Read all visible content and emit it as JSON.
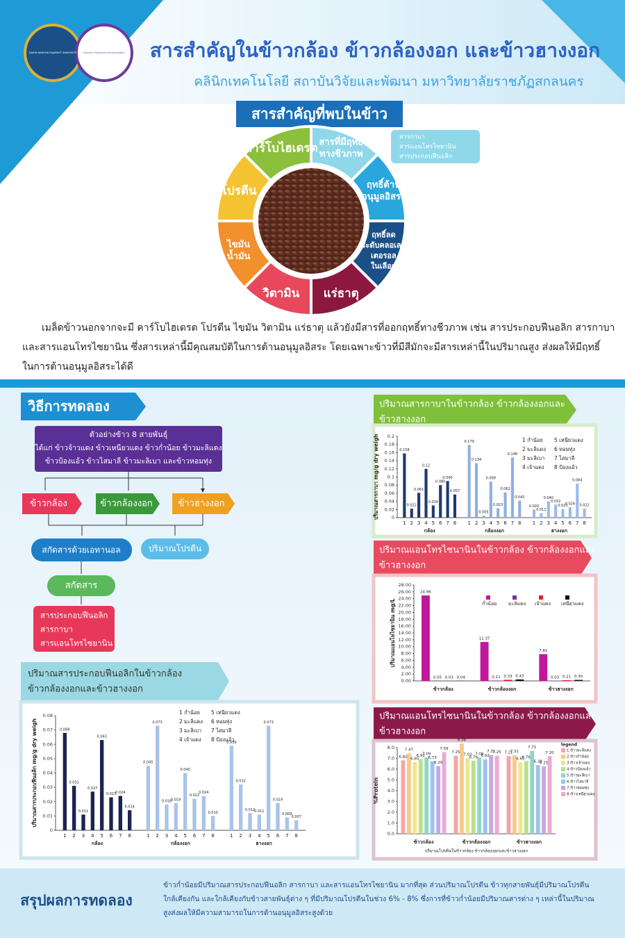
{
  "header": {
    "title": "สารสำคัญในข้าวกล้อง ข้าวกล้องงอก และข้าวฮางงอก",
    "subtitle": "คลินิกเทคโนโลยี สถาบันวิจัยและพัฒนา มหาวิทยาลัยราชภัฏสกลนคร",
    "logos": [
      "SAKON NAKHON RAJABHAT UNIVERSITY",
      "Science, Research and Innovation"
    ]
  },
  "compounds": {
    "title": "สารสำคัญที่พบในข้าว",
    "segments": [
      {
        "label": [
          "สารที่มีฤทธิ์",
          "ทางชีวภาพ"
        ],
        "color": "#8fd8ea"
      },
      {
        "label": [
          "ฤทธิ์ต้าน",
          "อนุมูลอิสระ"
        ],
        "color": "#2aa6de"
      },
      {
        "label": [
          "ฤทธิ์ลด",
          "ระดับคลอเลส",
          "เตอรอล",
          "ในเลือด"
        ],
        "color": "#1b4f88"
      },
      {
        "label": [
          "แร่ธาตุ"
        ],
        "color": "#8c1840"
      },
      {
        "label": [
          "วิตามิน"
        ],
        "color": "#e8485c"
      },
      {
        "label": [
          "ไขมัน",
          "น้ำมัน"
        ],
        "color": "#f2902c"
      },
      {
        "label": [
          "โปรตีน"
        ],
        "color": "#f5c232"
      },
      {
        "label": [
          "คาร์โบไฮเดรต"
        ],
        "color": "#8cbf3c"
      }
    ],
    "callout": [
      "สารกาบา",
      "สารแอนโทรไซยานิน",
      "สารประกอบฟีนอลิก"
    ]
  },
  "intro": [
    "เมล็ดข้าวนอกจากจะมี คาร์โบไฮเดรต โปรตีน ไขมัน วิตามิน  แร่ธาตุ แล้วยังมีสารที่ออกฤทธิ์ทางชีวภาพ เช่น สารประกอบฟีนอลิก สารกาบา",
    "และสารแอนโทรไซยานิน ซึ่งสารเหล่านี้มีคุณสมบัติในการต้านอนุมูลอิสระ โดยเฉพาะข้าวที่มีสีมักจะมีสารเหล่านี้ในปริมาณสูง ส่งผลให้มีฤทธิ์",
    "ในการต้านอนุมูลอิสระได้ดี"
  ],
  "method": {
    "title": "วิธีการทดลอง",
    "sample": [
      "ตัวอย่างข้าว 8 สายพันธุ์",
      "ได้แก่  ข้าวจ้าวแดง  ข้าวเหนียวแดง  ข้าวก่ำน้อย  ข้าวมะลิแดง",
      "ข้าวป้องแอ้ว  ข้าวไสมาลี  ข้าวมะลิเบา  และข้าวหอมทุ่ง"
    ],
    "types": [
      "ข้าวกล้อง",
      "ข้าวกล้องงอก",
      "ข้าวฮางงอก"
    ],
    "extract": "สกัดสารด้วยเอทานอล",
    "protein": "ปริมาณโปรตีน",
    "extract2": "สกัดสาร",
    "results": [
      "สารประกอบฟีนอลิก",
      "สารกาบา",
      "สารแอนโทรไซยานิน"
    ]
  },
  "chart_data": [
    {
      "type": "bar",
      "title": [
        "ปริมาณสารกาบาในข้าวกล้อง  ข้าวกล้องงอกและ",
        "ข้าวฮางงอก"
      ],
      "y_label": "ปริมาณสารกาบา mg/g dry weigh",
      "categories": [
        "1",
        "2",
        "3",
        "4",
        "5",
        "6",
        "7",
        "8"
      ],
      "series": [
        {
          "name": "กล้อง",
          "color": "#1f3a70",
          "values": [
            0.158,
            0.022,
            0.061,
            0.12,
            0.03,
            0.08,
            0.09,
            0.057
          ],
          "value_labels": [
            "0.158",
            "0.022",
            "0.061",
            "0.12",
            "0.030",
            "0.080",
            "0.090",
            "0.057"
          ]
        },
        {
          "name": "กล้องงอก",
          "color": "#8fb0e2",
          "values": [
            0.179,
            0.134,
            0.005,
            0.089,
            0.023,
            0.062,
            0.148,
            0.042
          ],
          "value_labels": [
            "0.179",
            "0.134",
            "0.005",
            "0.089",
            "0.023",
            "0.062",
            "0.148",
            "0.042"
          ]
        },
        {
          "name": "ฮางงอก",
          "color": "#9cbbe8",
          "values": [
            0.02,
            0.011,
            0.04,
            0.032,
            0.021,
            0.026,
            0.084,
            0.022
          ],
          "value_labels": [
            "0.020",
            "0.011",
            "0.040",
            "0.032",
            "0.021",
            "0.026",
            "0.084",
            "0.022"
          ]
        }
      ],
      "ylim": [
        0,
        0.2
      ],
      "yticks": [
        0,
        0.02,
        0.04,
        0.06,
        0.08,
        0.1,
        0.12,
        0.14,
        0.16,
        0.18,
        0.2
      ],
      "key": [
        "1 ก่ำน้อย",
        "2 มะลิแดง",
        "3 มะลิเบา",
        "4 เจ้าแดง",
        "5 เหนียวแดง",
        "6 หอมทุ่ง",
        "7 ไสมาลี",
        "8 ป้องแอ้ว"
      ]
    },
    {
      "type": "bar",
      "title": [
        "ปริมาณแอนโทรไซนานินในข้าวกล้อง  ข้าวกล้องงอกและ",
        "ข้าวฮางงอก"
      ],
      "y_label": "ปริมาณแอนโทไซยานิน mg/L",
      "categories": [
        "ข้าวกล้อง",
        "ข้าวกล้องงอก",
        "ข้าวฮางงอก"
      ],
      "series": [
        {
          "name": "ก่ำน้อย",
          "color": "#c0179c",
          "values": [
            24.96,
            11.37,
            7.81
          ],
          "value_labels": [
            "24.96",
            "11.37",
            "7.81"
          ]
        },
        {
          "name": "มะลิแดง",
          "color": "#7a2fa0",
          "values": [
            0.05,
            0.11,
            0.03
          ],
          "value_labels": [
            "0.05",
            "0.11",
            "0.03"
          ]
        },
        {
          "name": "เจ้าแดง",
          "color": "#e0202c",
          "values": [
            0.03,
            0.33,
            0.21
          ],
          "value_labels": [
            "0.03",
            "0.33",
            "0.21"
          ]
        },
        {
          "name": "เหนียวแดง",
          "color": "#111111",
          "values": [
            0.04,
            0.43,
            0.3
          ],
          "value_labels": [
            "0.04",
            "0.43",
            "0.30"
          ]
        }
      ],
      "ylim": [
        0,
        28
      ],
      "yticks": [
        {
          "value": 0,
          "label": "0.00"
        },
        {
          "value": 2,
          "label": "2.00"
        },
        {
          "value": 4,
          "label": "4.00"
        },
        {
          "value": 6,
          "label": "6.00"
        },
        {
          "value": 8,
          "label": "8.00"
        },
        {
          "value": 10,
          "label": "10.00"
        },
        {
          "value": 12,
          "label": "12.00"
        },
        {
          "value": 14,
          "label": "14.00"
        },
        {
          "value": 16,
          "label": "16.00"
        },
        {
          "value": 18,
          "label": "18.00"
        },
        {
          "value": 20,
          "label": "20.00"
        },
        {
          "value": 22,
          "label": "22.00"
        },
        {
          "value": 24,
          "label": "24.00"
        },
        {
          "value": 26,
          "label": "26.00"
        },
        {
          "value": 28,
          "label": "28.00"
        }
      ],
      "legend": "top-right"
    },
    {
      "type": "bar",
      "title": [
        "ปริมาณแอนโทรไซนานินในข้าวกล้อง  ข้าวกล้องงอกและ",
        "ข้าวฮางงอก"
      ],
      "y_label": "%Protein",
      "x_label": "ปริมาณโปรตีนในข้าวกล้อง ข้าวกล้องงอกและข้าวฮางงอก",
      "categories": [
        "ข้าวกล้อง",
        "ข้าวกล้องงอก",
        "ข้าวฮางงอก"
      ],
      "legend_title": "legend",
      "series": [
        {
          "name": "1.ข้าวมะลิแดง",
          "color": "#f4a6a6",
          "values": [
            6.82,
            7.25,
            7.21
          ],
          "value_labels": [
            "6.82",
            "7.25",
            "7.21"
          ]
        },
        {
          "name": "2.ข้าวก่ำน้อย",
          "color": "#f7c98a",
          "values": [
            7.47,
            8.38,
            7.31
          ],
          "value_labels": [
            "7.47",
            "8.38",
            "7.31"
          ]
        },
        {
          "name": "3.ข้าวเจ้าแดง",
          "color": "#f1e58c",
          "values": [
            6.65,
            7.03,
            6.65
          ],
          "value_labels": [
            "6.65",
            "7.03",
            "6.65"
          ]
        },
        {
          "name": "4.ข้าวป้องแอ้ว",
          "color": "#b8e08e",
          "values": [
            6.92,
            6.79,
            6.76
          ],
          "value_labels": [
            "6.92",
            "6.79",
            "6.76"
          ]
        },
        {
          "name": "5.ข้าวมะลิเบา",
          "color": "#8fd6c8",
          "values": [
            7.09,
            7.09,
            7.71
          ],
          "value_labels": [
            "7.09",
            "7.09",
            "7.71"
          ]
        },
        {
          "name": "6.ข้าวไสมาลี",
          "color": "#9cc3ee",
          "values": [
            6.73,
            6.92,
            6.38
          ],
          "value_labels": [
            "6.73",
            "6.92",
            "6.38"
          ]
        },
        {
          "name": "7.ข้าวหอมทุ่ง",
          "color": "#c3a8e6",
          "values": [
            6.29,
            7.31,
            6.25
          ],
          "value_labels": [
            "6.29",
            "7.31",
            "6.25"
          ]
        },
        {
          "name": "8.ข้าวเหนียวแดง",
          "color": "#ecaad4",
          "values": [
            7.59,
            7.25,
            7.2
          ],
          "value_labels": [
            "7.59",
            "7.25",
            "7.20"
          ]
        }
      ],
      "ylim": [
        0,
        8
      ],
      "yticks": [
        {
          "value": 0,
          "label": "0.0"
        },
        {
          "value": 1,
          "label": "1.0"
        },
        {
          "value": 2,
          "label": "2.0"
        },
        {
          "value": 3,
          "label": "3.0"
        },
        {
          "value": 4,
          "label": "4.0"
        },
        {
          "value": 5,
          "label": "5.0"
        },
        {
          "value": 6,
          "label": "6.0"
        },
        {
          "value": 7,
          "label": "7.0"
        },
        {
          "value": 8,
          "label": "8.0"
        }
      ],
      "legend": "right"
    },
    {
      "type": "bar",
      "title": [
        "ปริมาณสารประกอบฟีนอลิกในข้าวกล้อง",
        "ข้าวกล้องงอกและข้าวฮางงอก"
      ],
      "y_label": "ปริมาณสารประกอบฟีนอลิก mg/g dry weigh",
      "categories": [
        "1",
        "2",
        "3",
        "4",
        "5",
        "6",
        "7",
        "8"
      ],
      "series": [
        {
          "name": "กล้อง",
          "color": "#1c2452",
          "values": [
            0.068,
            0.031,
            0.011,
            0.027,
            0.063,
            0.023,
            0.024,
            0.014
          ],
          "value_labels": [
            "0.068",
            "0.031",
            "0.011",
            "0.027",
            "0.063",
            "0.023",
            "0.024",
            "0.014"
          ]
        },
        {
          "name": "กล้องงอก",
          "color": "#a8c4ea",
          "values": [
            0.045,
            0.073,
            0.018,
            0.019,
            0.04,
            0.022,
            0.024,
            0.01
          ],
          "value_labels": [
            "0.045",
            "0.073",
            "0.018",
            "0.019",
            "0.040",
            "0.022",
            "0.024",
            "0.010"
          ]
        },
        {
          "name": "ฮางงอก",
          "color": "#a8c4ea",
          "values": [
            0.059,
            0.032,
            0.012,
            0.011,
            0.073,
            0.019,
            0.009,
            0.007
          ],
          "value_labels": [
            "0.059",
            "0.032",
            "0.012",
            "0.011",
            "0.073",
            "0.019",
            "0.009",
            "0.007"
          ]
        }
      ],
      "ylim": [
        0,
        0.08
      ],
      "yticks": [
        0,
        0.01,
        0.02,
        0.03,
        0.04,
        0.05,
        0.06,
        0.07,
        0.08
      ],
      "key": [
        "1 ก่ำน้อย",
        "2 มะลิแดง",
        "3 มะลิเบา",
        "4 เจ้าแดง",
        "5 เหนียวแดง",
        "6 หอมทุ่ง",
        "7 ไสมาลี",
        "8 ป้องแอ้ว"
      ]
    }
  ],
  "conclusion": {
    "title": "สรุปผลการทดลอง",
    "lines": [
      "ข้าวก่ำน้อยมีปริมาณสารประกอบฟีนอลิก สารกาบา และสารแอนโทรไซยานิน มากที่สุด ส่วนปริมาณโปรตีน ข้าวทุกสายพันธุ์มีปริมาณโปรตีน",
      "ใกล้เคียงกัน และใกล้เคียงกับข้าวสายพันธุ์ต่าง ๆ  ที่มีปริมาณโปรตีนในช่วง 6% - 8%  ซึ่งการที่ข้าวก่ำน้อยมีปริมาณสารต่าง ๆ เหล่านี้ในปริมาณ",
      "สูงส่งผลให้มีความสามารถในการต้านอนุมูลอิสระสูงด้วย"
    ]
  }
}
